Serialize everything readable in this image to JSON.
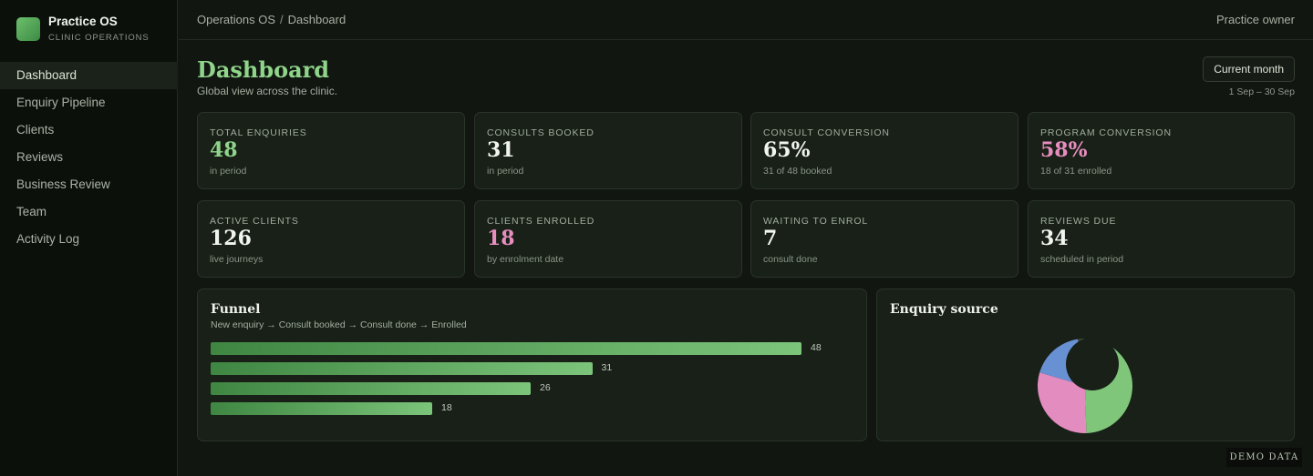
{
  "brand": {
    "title": "Practice OS",
    "subtitle": "CLINIC OPERATIONS",
    "logo_icon": "app-logo-icon"
  },
  "sidebar": {
    "active": "Dashboard",
    "items": [
      {
        "label": "Dashboard"
      },
      {
        "label": "Enquiry Pipeline"
      },
      {
        "label": "Clients"
      },
      {
        "label": "Reviews"
      },
      {
        "label": "Business Review"
      },
      {
        "label": "Team"
      },
      {
        "label": "Activity Log"
      }
    ]
  },
  "topbar": {
    "breadcrumb": [
      "Operations OS",
      "Dashboard"
    ],
    "separator": "/",
    "user_role": "Practice owner"
  },
  "header": {
    "title": "Dashboard",
    "subtitle": "Global view across the clinic.",
    "period_button": "Current month",
    "period_range": "1 Sep – 30 Sep"
  },
  "cards": [
    {
      "label": "TOTAL ENQUIRIES",
      "value": "48",
      "note": "in period",
      "accent": "#8fd48a"
    },
    {
      "label": "CONSULTS BOOKED",
      "value": "31",
      "note": "in period",
      "accent": "#f2f5ef"
    },
    {
      "label": "CONSULT CONVERSION",
      "value": "65%",
      "note": "31 of 48 booked",
      "accent": "#f2f5ef"
    },
    {
      "label": "PROGRAM CONVERSION",
      "value": "58%",
      "note": "18 of 31 enrolled",
      "accent": "#e78ebf"
    },
    {
      "label": "ACTIVE CLIENTS",
      "value": "126",
      "note": "live journeys",
      "accent": "#f2f5ef"
    },
    {
      "label": "CLIENTS ENROLLED",
      "value": "18",
      "note": "by enrolment date",
      "accent": "#e78ebf"
    },
    {
      "label": "WAITING TO ENROL",
      "value": "7",
      "note": "consult done",
      "accent": "#f2f5ef"
    },
    {
      "label": "REVIEWS DUE",
      "value": "34",
      "note": "scheduled in period",
      "accent": "#f2f5ef"
    }
  ],
  "funnel": {
    "title": "Funnel",
    "subtitle": "New enquiry → Consult booked → Consult done → Enrolled",
    "max": 48,
    "values": [
      48,
      31,
      26,
      18
    ]
  },
  "source": {
    "title": "Enquiry source",
    "chart_data": {
      "type": "pie",
      "title": "Enquiry source",
      "slices": [
        {
          "value": 44,
          "color": "#7fc67b"
        },
        {
          "value": 30,
          "color": "#e38cbf"
        },
        {
          "value": 18,
          "color": "#6891d4"
        },
        {
          "value": 8,
          "color": "#3c4a39"
        }
      ]
    }
  },
  "badge": "DEMO DATA"
}
